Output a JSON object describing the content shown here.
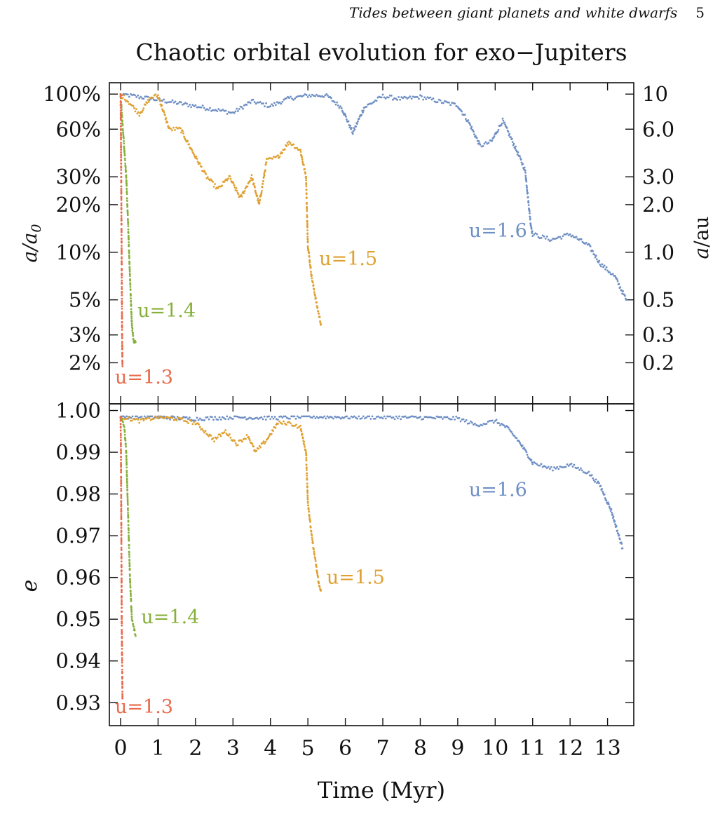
{
  "header": {
    "running_title": "Tides between giant planets and white dwarfs",
    "page_number": "5"
  },
  "chart_data": {
    "type": "scatter",
    "title": "Chaotic orbital evolution for exo−Jupiters",
    "xlabel": "Time (Myr)",
    "xlim": [
      -0.3,
      13.7
    ],
    "x_ticks": [
      0,
      1,
      2,
      3,
      4,
      5,
      6,
      7,
      8,
      9,
      10,
      11,
      12,
      13
    ],
    "top_panel": {
      "ylabel": "a/a0",
      "ylabel_right": "a/au",
      "y_scale": "log",
      "ylim": [
        0.011,
        1.18
      ],
      "y_ticks": [
        1.0,
        0.6,
        0.3,
        0.2,
        0.1,
        0.05,
        0.03,
        0.02
      ],
      "y_tick_labels": [
        "100%",
        "60%",
        "30%",
        "20%",
        "10%",
        "5%",
        "3%",
        "2%"
      ],
      "right_ticks": [
        10,
        6.0,
        3.0,
        2.0,
        1.0,
        0.5,
        0.3,
        0.2
      ],
      "right_tick_labels": [
        "10",
        "6.0",
        "3.0",
        "2.0",
        "1.0",
        "0.5",
        "0.3",
        "0.2"
      ],
      "series": [
        {
          "name": "u=1.6",
          "color": "#6f8fc4",
          "x": [
            0.0,
            0.5,
            1.0,
            1.5,
            2.0,
            2.5,
            3.0,
            3.5,
            4.0,
            4.5,
            5.0,
            5.5,
            5.9,
            6.2,
            6.5,
            7.0,
            7.5,
            8.0,
            8.5,
            9.0,
            9.3,
            9.6,
            9.9,
            10.2,
            10.5,
            10.8,
            10.95,
            11.0,
            11.5,
            12.0,
            12.5,
            12.8,
            13.2,
            13.5
          ],
          "y": [
            1.0,
            0.96,
            0.92,
            0.88,
            0.84,
            0.8,
            0.76,
            0.9,
            0.84,
            0.94,
            0.98,
            0.98,
            0.82,
            0.57,
            0.82,
            0.97,
            0.93,
            0.96,
            0.9,
            0.85,
            0.66,
            0.47,
            0.5,
            0.68,
            0.48,
            0.33,
            0.15,
            0.13,
            0.12,
            0.13,
            0.11,
            0.085,
            0.07,
            0.05
          ]
        },
        {
          "name": "u=1.5",
          "color": "#e0a030",
          "x": [
            0.0,
            0.2,
            0.5,
            0.8,
            1.0,
            1.3,
            1.6,
            2.0,
            2.3,
            2.6,
            2.9,
            3.2,
            3.5,
            3.7,
            3.9,
            4.2,
            4.5,
            4.8,
            4.95,
            5.0,
            5.1,
            5.25,
            5.35
          ],
          "y": [
            1.0,
            0.9,
            0.75,
            0.95,
            0.98,
            0.6,
            0.6,
            0.4,
            0.3,
            0.25,
            0.3,
            0.22,
            0.3,
            0.2,
            0.38,
            0.4,
            0.5,
            0.44,
            0.3,
            0.11,
            0.07,
            0.045,
            0.035
          ]
        },
        {
          "name": "u=1.4",
          "color": "#86b03a",
          "x": [
            0.0,
            0.05,
            0.1,
            0.15,
            0.2,
            0.25,
            0.3,
            0.35,
            0.4
          ],
          "y": [
            1.0,
            0.65,
            0.45,
            0.3,
            0.15,
            0.07,
            0.035,
            0.027,
            0.027
          ]
        },
        {
          "name": "u=1.3",
          "color": "#e86a4a",
          "x": [
            0.0,
            0.01,
            0.02,
            0.03,
            0.04,
            0.05
          ],
          "y": [
            1.0,
            0.5,
            0.2,
            0.08,
            0.03,
            0.019
          ]
        }
      ]
    },
    "bottom_panel": {
      "ylabel": "e",
      "ylim": [
        0.9245,
        1.0016
      ],
      "y_ticks": [
        1.0,
        0.99,
        0.98,
        0.97,
        0.96,
        0.95,
        0.94,
        0.93
      ],
      "y_tick_labels": [
        "1.00",
        "0.99",
        "0.98",
        "0.97",
        "0.96",
        "0.95",
        "0.94",
        "0.93"
      ],
      "series": [
        {
          "name": "u=1.6",
          "color": "#6f8fc4",
          "x": [
            0.0,
            1.0,
            2.0,
            3.0,
            4.0,
            5.0,
            6.0,
            7.0,
            8.0,
            9.0,
            9.5,
            10.0,
            10.3,
            10.6,
            10.9,
            11.0,
            11.5,
            12.0,
            12.5,
            12.8,
            13.1,
            13.4
          ],
          "y": [
            0.9985,
            0.9984,
            0.998,
            0.9984,
            0.9982,
            0.9985,
            0.9984,
            0.9984,
            0.9983,
            0.9981,
            0.9965,
            0.9975,
            0.996,
            0.993,
            0.989,
            0.9875,
            0.986,
            0.987,
            0.985,
            0.982,
            0.976,
            0.967
          ]
        },
        {
          "name": "u=1.5",
          "color": "#e0a030",
          "x": [
            0.0,
            0.5,
            1.0,
            1.5,
            2.0,
            2.5,
            2.8,
            3.1,
            3.4,
            3.6,
            3.9,
            4.2,
            4.5,
            4.8,
            4.95,
            5.0,
            5.1,
            5.2,
            5.3,
            5.35
          ],
          "y": [
            0.9985,
            0.9975,
            0.9984,
            0.998,
            0.997,
            0.993,
            0.995,
            0.992,
            0.994,
            0.99,
            0.993,
            0.997,
            0.997,
            0.996,
            0.99,
            0.978,
            0.97,
            0.964,
            0.958,
            0.957
          ]
        },
        {
          "name": "u=1.4",
          "color": "#86b03a",
          "x": [
            0.0,
            0.1,
            0.15,
            0.2,
            0.25,
            0.3,
            0.35,
            0.4
          ],
          "y": [
            0.9985,
            0.996,
            0.99,
            0.975,
            0.96,
            0.95,
            0.948,
            0.946
          ]
        },
        {
          "name": "u=1.3",
          "color": "#e86a4a",
          "x": [
            0.0,
            0.01,
            0.02,
            0.03,
            0.04,
            0.05
          ],
          "y": [
            0.9985,
            0.99,
            0.97,
            0.95,
            0.94,
            0.931
          ]
        }
      ]
    },
    "annotations": {
      "top": [
        {
          "text": "u=1.6",
          "color": "#6f8fc4",
          "x": 9.3,
          "y": 0.125
        },
        {
          "text": "u=1.5",
          "color": "#e0a030",
          "x": 5.3,
          "y": 0.083
        },
        {
          "text": "u=1.4",
          "color": "#86b03a",
          "x": 0.45,
          "y": 0.039
        },
        {
          "text": "u=1.3",
          "color": "#e86a4a",
          "x": -0.15,
          "y": 0.0148
        }
      ],
      "bottom": [
        {
          "text": "u=1.6",
          "color": "#6f8fc4",
          "x": 9.3,
          "y": 0.9795
        },
        {
          "text": "u=1.5",
          "color": "#e0a030",
          "x": 5.5,
          "y": 0.9585
        },
        {
          "text": "u=1.4",
          "color": "#86b03a",
          "x": 0.55,
          "y": 0.949
        },
        {
          "text": "u=1.3",
          "color": "#e86a4a",
          "x": -0.15,
          "y": 0.9275
        }
      ]
    }
  }
}
